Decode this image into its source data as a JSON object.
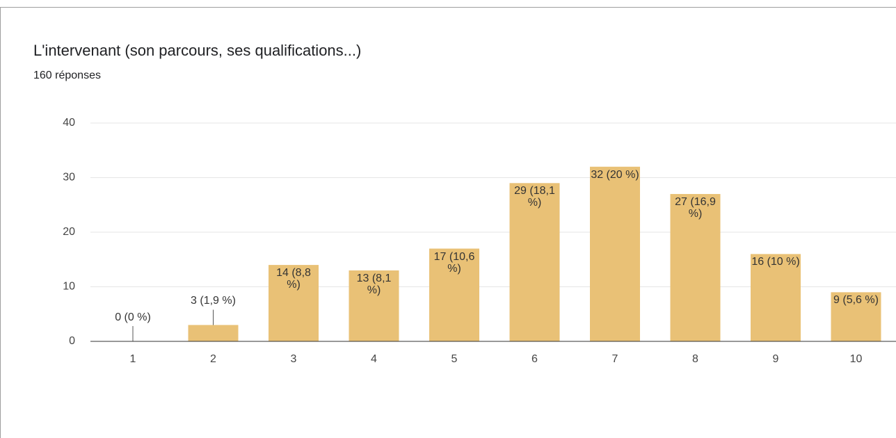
{
  "chart_data": {
    "type": "bar",
    "title": "L'intervenant (son parcours, ses qualifications...)",
    "subtitle": "160 réponses",
    "categories": [
      "1",
      "2",
      "3",
      "4",
      "5",
      "6",
      "7",
      "8",
      "9",
      "10"
    ],
    "values": [
      0,
      3,
      14,
      13,
      17,
      29,
      32,
      27,
      16,
      9
    ],
    "value_labels": [
      "0 (0 %)",
      "3 (1,9 %)",
      "14 (8,8 %)",
      "13 (8,1 %)",
      "17 (10,6 %)",
      "29 (18,1 %)",
      "32 (20 %)",
      "27 (16,9 %)",
      "16 (10 %)",
      "9 (5,6 %)"
    ],
    "color": "#e9c176",
    "ylim": [
      0,
      40
    ],
    "yticks": [
      0,
      10,
      20,
      30,
      40
    ],
    "grid": true
  }
}
